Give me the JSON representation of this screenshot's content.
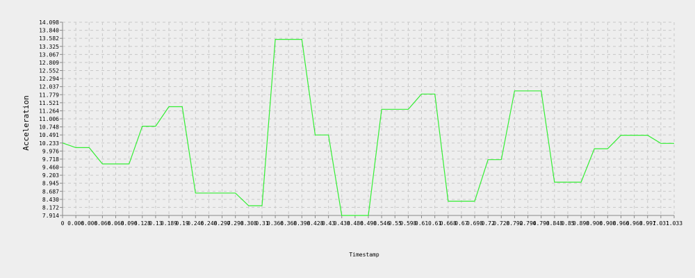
{
  "chart_data": {
    "type": "line",
    "title": "",
    "xlabel": "Timestamp",
    "ylabel": "Acceleration",
    "ylim": [
      7.914,
      14.098
    ],
    "grid": true,
    "series_color": "#33ee33",
    "y_ticks": [
      "7.914",
      "8.172",
      "8.430",
      "8.687",
      "8.945",
      "9.203",
      "9.460",
      "9.718",
      "9.976",
      "10.233",
      "10.491",
      "10.748",
      "11.006",
      "11.264",
      "11.521",
      "11.779",
      "12.037",
      "12.294",
      "12.552",
      "12.809",
      "13.067",
      "13.325",
      "13.582",
      "13.840",
      "14.098"
    ],
    "x_ticks": [
      "0",
      "0.006",
      "0.006",
      "0.066",
      "0.068",
      "0.096",
      "0.128",
      "0.13",
      "0.189",
      "0.19",
      "0.246",
      "0.248",
      "0.297",
      "0.298",
      "0.308",
      "0.31",
      "0.366",
      "0.368",
      "0.398",
      "0.428",
      "0.43",
      "0.438",
      "0.486",
      "0.498",
      "0.546",
      "0.55",
      "0.598",
      "0.61",
      "0.61",
      "0.668",
      "0.67",
      "0.698",
      "0.72",
      "0.728",
      "0.792",
      "0.794",
      "0.798",
      "0.848",
      "0.85",
      "0.898",
      "0.906",
      "0.908",
      "0.966",
      "0.968",
      "0.997",
      "1.031",
      "1.033"
    ],
    "y": [
      10.233,
      10.085,
      10.085,
      9.562,
      9.562,
      9.562,
      10.77,
      10.77,
      11.395,
      11.395,
      8.63,
      8.63,
      8.63,
      8.63,
      8.225,
      8.225,
      13.55,
      13.55,
      13.55,
      10.49,
      10.49,
      7.914,
      7.914,
      7.914,
      11.31,
      11.31,
      11.31,
      11.8,
      11.8,
      8.37,
      8.37,
      8.37,
      9.7,
      9.7,
      11.9,
      11.9,
      11.9,
      8.98,
      8.98,
      8.98,
      10.05,
      10.05,
      10.48,
      10.48,
      10.48,
      10.22,
      10.22
    ]
  }
}
